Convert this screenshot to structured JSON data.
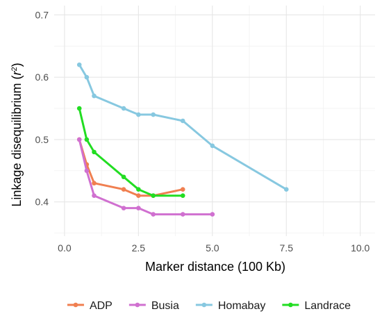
{
  "chart_data": {
    "type": "line",
    "xlabel": "Marker distance (100 Kb)",
    "ylabel_main": "Linkage disequilibrium (",
    "ylabel_r": "r",
    "ylabel_sup": "2",
    "ylabel_close": ")",
    "xlim": [
      -0.35,
      10.5
    ],
    "ylim": [
      0.345,
      0.715
    ],
    "x_ticks": [
      0,
      2.5,
      5,
      7.5,
      10
    ],
    "x_tick_labels": [
      "0.0",
      "2.5",
      "5.0",
      "7.5",
      "10.0"
    ],
    "y_ticks": [
      0.4,
      0.5,
      0.6,
      0.7
    ],
    "y_tick_labels": [
      "0.4",
      "0.5",
      "0.6",
      "0.7"
    ],
    "grid": true,
    "legend_position": "bottom",
    "series": [
      {
        "name": "ADP",
        "color": "#f07f50",
        "x": [
          0.5,
          0.75,
          1,
          2,
          2.5,
          3,
          4
        ],
        "y": [
          0.5,
          0.46,
          0.43,
          0.42,
          0.41,
          0.41,
          0.42
        ]
      },
      {
        "name": "Busia",
        "color": "#d070d0",
        "x": [
          0.5,
          0.75,
          1,
          2,
          2.5,
          3,
          4,
          5
        ],
        "y": [
          0.5,
          0.45,
          0.41,
          0.39,
          0.39,
          0.38,
          0.38,
          0.38
        ]
      },
      {
        "name": "Homabay",
        "color": "#87c8e0",
        "x": [
          0.5,
          0.75,
          1,
          2,
          2.5,
          3,
          4,
          5,
          7.5
        ],
        "y": [
          0.62,
          0.6,
          0.57,
          0.55,
          0.54,
          0.54,
          0.53,
          0.49,
          0.42
        ]
      },
      {
        "name": "Landrace",
        "color": "#22dd22",
        "x": [
          0.5,
          0.75,
          1,
          2,
          2.5,
          3,
          4
        ],
        "y": [
          0.55,
          0.5,
          0.48,
          0.44,
          0.42,
          0.41,
          0.41
        ]
      }
    ]
  }
}
